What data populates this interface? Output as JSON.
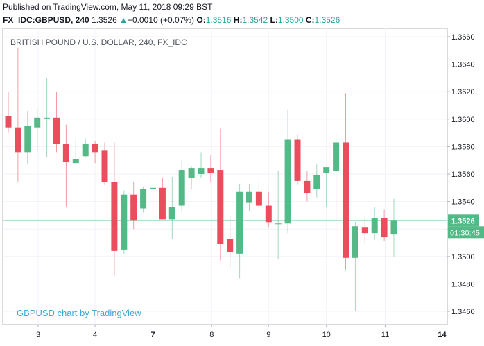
{
  "header": {
    "published": "Published on TradingView.com, May 11, 2018 09:29 BST",
    "symbol": "FX_IDC:GBPUSD, 240",
    "last": "1.3526",
    "arrow": "▲",
    "change": "+0.0010 (+0.07%)",
    "o_label": "O:",
    "o_value": "1.3516",
    "h_label": "H:",
    "h_value": "1.3542",
    "l_label": "L:",
    "l_value": "1.3500",
    "c_label": "C:",
    "c_value": "1.3526"
  },
  "legend_title": "BRITISH POUND / U.S. DOLLAR, 240, FX_IDC",
  "watermark": "GBPUSD chart by TradingView",
  "colors": {
    "up": "#53b987",
    "down": "#eb4d5c",
    "grid": "#f0f3fa",
    "price_label": "#53b987"
  },
  "chart_data": {
    "type": "candlestick",
    "ylim": [
      1.3455,
      1.3668
    ],
    "y_ticks": [
      "1.3660",
      "1.3640",
      "1.3620",
      "1.3600",
      "1.3580",
      "1.3560",
      "1.3540",
      "1.3520",
      "1.3500",
      "1.3480",
      "1.3460"
    ],
    "x_ticks": [
      "3",
      "4",
      "7",
      "8",
      "9",
      "10",
      "11",
      "14"
    ],
    "bold_x_ticks": [
      "7",
      "14"
    ],
    "current_price": "1.3526",
    "countdown": "01:30:45",
    "candles": [
      {
        "o": 1.3602,
        "h": 1.362,
        "l": 1.359,
        "c": 1.3594
      },
      {
        "o": 1.3594,
        "h": 1.3652,
        "l": 1.3554,
        "c": 1.3576
      },
      {
        "o": 1.3576,
        "h": 1.3606,
        "l": 1.3567,
        "c": 1.3595
      },
      {
        "o": 1.3594,
        "h": 1.3608,
        "l": 1.3576,
        "c": 1.3601
      },
      {
        "o": 1.3601,
        "h": 1.363,
        "l": 1.3572,
        "c": 1.3601
      },
      {
        "o": 1.3601,
        "h": 1.362,
        "l": 1.3576,
        "c": 1.3582
      },
      {
        "o": 1.3582,
        "h": 1.3596,
        "l": 1.3536,
        "c": 1.3569
      },
      {
        "o": 1.3568,
        "h": 1.3586,
        "l": 1.3568,
        "c": 1.3571
      },
      {
        "o": 1.3573,
        "h": 1.3586,
        "l": 1.3572,
        "c": 1.3582
      },
      {
        "o": 1.3582,
        "h": 1.3584,
        "l": 1.3568,
        "c": 1.3576
      },
      {
        "o": 1.3577,
        "h": 1.3583,
        "l": 1.3552,
        "c": 1.3554
      },
      {
        "o": 1.3554,
        "h": 1.3583,
        "l": 1.3486,
        "c": 1.3504
      },
      {
        "o": 1.3505,
        "h": 1.3548,
        "l": 1.3502,
        "c": 1.3545
      },
      {
        "o": 1.3545,
        "h": 1.3554,
        "l": 1.352,
        "c": 1.3526
      },
      {
        "o": 1.3535,
        "h": 1.3551,
        "l": 1.3532,
        "c": 1.3549
      },
      {
        "o": 1.3549,
        "h": 1.3562,
        "l": 1.3535,
        "c": 1.355
      },
      {
        "o": 1.355,
        "h": 1.3557,
        "l": 1.3527,
        "c": 1.3527
      },
      {
        "o": 1.3527,
        "h": 1.3558,
        "l": 1.3513,
        "c": 1.3536
      },
      {
        "o": 1.3537,
        "h": 1.357,
        "l": 1.3532,
        "c": 1.3563
      },
      {
        "o": 1.3557,
        "h": 1.3566,
        "l": 1.3549,
        "c": 1.3564
      },
      {
        "o": 1.356,
        "h": 1.3576,
        "l": 1.3557,
        "c": 1.3564
      },
      {
        "o": 1.3564,
        "h": 1.3574,
        "l": 1.3554,
        "c": 1.3561
      },
      {
        "o": 1.3563,
        "h": 1.3593,
        "l": 1.3497,
        "c": 1.3509
      },
      {
        "o": 1.3513,
        "h": 1.353,
        "l": 1.3491,
        "c": 1.3503
      },
      {
        "o": 1.3502,
        "h": 1.3553,
        "l": 1.3484,
        "c": 1.3547
      },
      {
        "o": 1.3539,
        "h": 1.3553,
        "l": 1.3533,
        "c": 1.3547
      },
      {
        "o": 1.3547,
        "h": 1.3556,
        "l": 1.3534,
        "c": 1.3537
      },
      {
        "o": 1.3537,
        "h": 1.3547,
        "l": 1.3521,
        "c": 1.3525
      },
      {
        "o": 1.3524,
        "h": 1.3562,
        "l": 1.3498,
        "c": 1.3524
      },
      {
        "o": 1.3524,
        "h": 1.3607,
        "l": 1.3517,
        "c": 1.3585
      },
      {
        "o": 1.3585,
        "h": 1.3589,
        "l": 1.3552,
        "c": 1.3555
      },
      {
        "o": 1.3555,
        "h": 1.3562,
        "l": 1.354,
        "c": 1.3546
      },
      {
        "o": 1.3549,
        "h": 1.3567,
        "l": 1.3543,
        "c": 1.3559
      },
      {
        "o": 1.3561,
        "h": 1.3565,
        "l": 1.3536,
        "c": 1.3565
      },
      {
        "o": 1.3562,
        "h": 1.359,
        "l": 1.3523,
        "c": 1.3583
      },
      {
        "o": 1.3583,
        "h": 1.3619,
        "l": 1.349,
        "c": 1.3499
      },
      {
        "o": 1.3499,
        "h": 1.3525,
        "l": 1.346,
        "c": 1.3522
      },
      {
        "o": 1.3521,
        "h": 1.3528,
        "l": 1.351,
        "c": 1.3517
      },
      {
        "o": 1.3517,
        "h": 1.3536,
        "l": 1.3512,
        "c": 1.3528
      },
      {
        "o": 1.3528,
        "h": 1.3534,
        "l": 1.3511,
        "c": 1.3514
      },
      {
        "o": 1.3516,
        "h": 1.3542,
        "l": 1.35,
        "c": 1.3526
      }
    ]
  }
}
